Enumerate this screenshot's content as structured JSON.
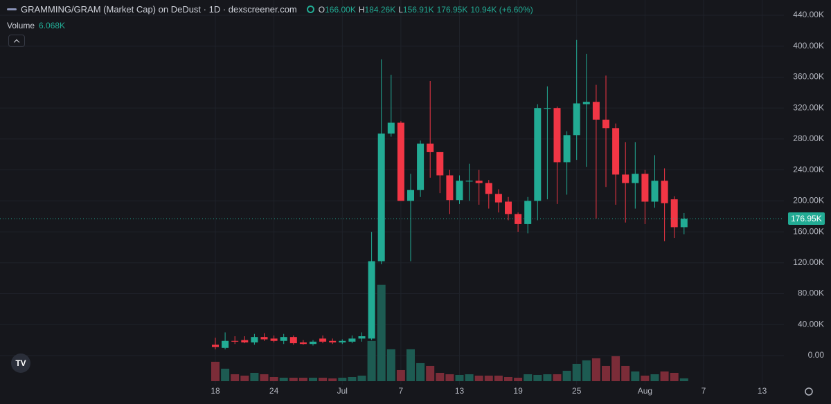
{
  "header": {
    "title": "GRAMMING/GRAM (Market Cap) on DeDust · 1D · dexscreener.com",
    "ohlc": [
      {
        "label": "O",
        "value": "166.00K"
      },
      {
        "label": "H",
        "value": "184.26K"
      },
      {
        "label": "L",
        "value": "156.91K"
      },
      {
        "value": "176.95K"
      },
      {
        "value": "10.94K (+6.60%)"
      }
    ],
    "volume_label": "Volume",
    "volume_value": "6.068K"
  },
  "last_price_label": "176.95K",
  "chart_data": {
    "type": "candlestick",
    "categories": [
      "18",
      null,
      null,
      null,
      null,
      null,
      "24",
      null,
      null,
      null,
      null,
      null,
      null,
      "Jul",
      null,
      null,
      null,
      null,
      null,
      "7",
      null,
      null,
      null,
      null,
      null,
      "13",
      null,
      null,
      null,
      null,
      null,
      "19",
      null,
      null,
      null,
      null,
      null,
      "25",
      null,
      null,
      null,
      null,
      null,
      null,
      "Aug",
      null,
      null,
      null,
      null,
      null,
      "7",
      null,
      null,
      null,
      null,
      null,
      "13"
    ],
    "open": [
      14000,
      10000,
      19000,
      20000,
      17000,
      24000,
      22000,
      19000,
      24000,
      17000,
      15000,
      22000,
      19000,
      17000,
      18000,
      22000,
      22000,
      122000,
      287000,
      301000,
      200000,
      214000,
      274000,
      263000,
      233000,
      201000,
      225000,
      226000,
      223000,
      209000,
      199000,
      183000,
      170000,
      200000,
      319000,
      320000,
      250000,
      285000,
      325000,
      328000,
      305000,
      294000,
      234000,
      223000,
      235000,
      199000,
      226000,
      202000,
      166000,
      null,
      null,
      null,
      null,
      null,
      null,
      null,
      null
    ],
    "high": [
      23000,
      30000,
      25000,
      25000,
      28000,
      29000,
      26000,
      28000,
      26000,
      20000,
      20000,
      26000,
      22000,
      21000,
      26000,
      30000,
      160000,
      383000,
      363000,
      303000,
      235000,
      278000,
      355000,
      263000,
      240000,
      233000,
      248000,
      240000,
      227000,
      215000,
      205000,
      185000,
      205000,
      325000,
      348000,
      322000,
      290000,
      408000,
      390000,
      350000,
      362000,
      300000,
      276000,
      276000,
      240000,
      259000,
      242000,
      206000,
      184260,
      null,
      null,
      null,
      null,
      null,
      null,
      null,
      null
    ],
    "low": [
      8000,
      8000,
      15000,
      16000,
      14000,
      19000,
      17000,
      15000,
      14000,
      14000,
      13000,
      16000,
      15000,
      15000,
      16000,
      18000,
      20000,
      118000,
      283000,
      200000,
      122000,
      205000,
      230000,
      210000,
      183000,
      196000,
      200000,
      195000,
      190000,
      185000,
      175000,
      160000,
      158000,
      175000,
      202000,
      196000,
      208000,
      253000,
      244000,
      177000,
      218000,
      195000,
      172000,
      190000,
      170000,
      191000,
      148000,
      152000,
      156910,
      null,
      null,
      null,
      null,
      null,
      null,
      null,
      null
    ],
    "close": [
      11000,
      19000,
      18000,
      17000,
      24000,
      21000,
      19000,
      24000,
      16000,
      15000,
      18000,
      18000,
      17000,
      19000,
      22000,
      25000,
      122000,
      287000,
      301000,
      200000,
      214000,
      274000,
      263000,
      233000,
      201000,
      226000,
      226000,
      223000,
      209000,
      198000,
      183000,
      170000,
      200000,
      320000,
      320000,
      250000,
      285000,
      326000,
      328000,
      305000,
      294000,
      234000,
      223000,
      235000,
      199000,
      226000,
      197000,
      166000,
      176950,
      null,
      null,
      null,
      null,
      null,
      null,
      null,
      null
    ],
    "volume": [
      42000,
      27000,
      15000,
      12000,
      18000,
      15000,
      9000,
      7500,
      7500,
      7500,
      7500,
      7500,
      6000,
      7500,
      9000,
      12000,
      87000,
      208500,
      69000,
      24000,
      69000,
      39000,
      33000,
      18000,
      15000,
      13500,
      15000,
      12000,
      12000,
      12000,
      9000,
      7500,
      15000,
      13500,
      15000,
      15000,
      22500,
      37500,
      45000,
      49500,
      33000,
      54000,
      33000,
      21000,
      12000,
      15000,
      21000,
      18000,
      6068,
      null,
      null,
      null,
      null,
      null,
      null,
      null,
      null
    ],
    "up_color": "#22ab94",
    "down_color": "#f23645",
    "volume_up_color": "#1d5b52",
    "volume_down_color": "#7b2c38",
    "ylim": [
      0,
      440000
    ],
    "volume_ylim": [
      0,
      250000
    ],
    "yticks": [
      {
        "value": 0,
        "label": "0.00"
      },
      {
        "value": 40000,
        "label": "40.00K"
      },
      {
        "value": 80000,
        "label": "80.00K"
      },
      {
        "value": 120000,
        "label": "120.00K"
      },
      {
        "value": 160000,
        "label": "160.00K"
      },
      {
        "value": 200000,
        "label": "200.00K"
      },
      {
        "value": 240000,
        "label": "240.00K"
      },
      {
        "value": 280000,
        "label": "280.00K"
      },
      {
        "value": 320000,
        "label": "320.00K"
      },
      {
        "value": 360000,
        "label": "360.00K"
      },
      {
        "value": 400000,
        "label": "400.00K"
      },
      {
        "value": 440000,
        "label": "440.00K"
      }
    ],
    "grid": true
  }
}
